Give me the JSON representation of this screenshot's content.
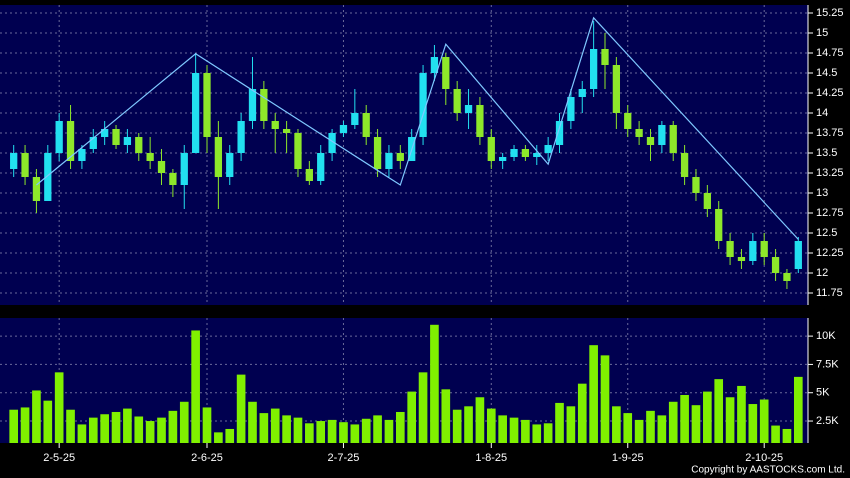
{
  "chart_data": [
    {
      "type": "candlestick",
      "open": [
        13.3,
        13.5,
        13.2,
        12.9,
        13.5,
        13.9,
        13.4,
        13.55,
        13.7,
        13.8,
        13.6,
        13.7,
        13.5,
        13.4,
        13.25,
        13.1,
        13.5,
        14.5,
        13.7,
        13.2,
        13.5,
        13.9,
        14.3,
        13.9,
        13.8,
        13.75,
        13.3,
        13.15,
        13.5,
        13.75,
        13.85,
        14.0,
        13.7,
        13.3,
        13.5,
        13.4,
        13.7,
        14.5,
        14.7,
        14.3,
        14.0,
        14.1,
        13.7,
        13.4,
        13.45,
        13.55,
        13.45,
        13.5,
        13.6,
        13.9,
        14.2,
        14.3,
        14.8,
        14.6,
        14.0,
        13.8,
        13.7,
        13.6,
        13.85,
        13.5,
        13.2,
        13.0,
        12.8,
        12.4,
        12.2,
        12.15,
        12.4,
        12.2,
        12.0,
        12.05
      ],
      "high": [
        13.6,
        13.6,
        13.3,
        13.6,
        14.0,
        14.1,
        13.6,
        13.8,
        13.9,
        13.85,
        13.8,
        13.75,
        13.7,
        13.55,
        13.3,
        13.6,
        14.75,
        14.6,
        13.9,
        13.6,
        14.0,
        14.7,
        14.4,
        14.0,
        13.9,
        13.8,
        13.4,
        13.6,
        13.8,
        13.9,
        14.3,
        14.1,
        13.8,
        13.6,
        13.6,
        13.8,
        14.6,
        14.85,
        14.75,
        14.4,
        14.3,
        14.2,
        13.8,
        13.5,
        13.6,
        13.6,
        13.6,
        13.7,
        14.0,
        14.3,
        14.4,
        15.15,
        15.0,
        14.7,
        14.1,
        13.9,
        13.8,
        13.9,
        13.9,
        13.6,
        13.3,
        13.1,
        12.9,
        12.5,
        12.3,
        12.5,
        12.5,
        12.3,
        12.05,
        12.45
      ],
      "low": [
        13.2,
        13.1,
        12.75,
        12.9,
        13.4,
        13.3,
        13.3,
        13.5,
        13.6,
        13.55,
        13.5,
        13.4,
        13.3,
        13.1,
        12.95,
        12.8,
        13.5,
        13.5,
        12.8,
        13.1,
        13.4,
        13.8,
        13.8,
        13.5,
        13.5,
        13.2,
        13.1,
        13.1,
        13.4,
        13.7,
        13.8,
        13.6,
        13.2,
        13.2,
        13.3,
        13.4,
        13.6,
        14.4,
        14.1,
        13.9,
        13.8,
        13.6,
        13.3,
        13.3,
        13.4,
        13.4,
        13.35,
        13.4,
        13.5,
        13.8,
        14.0,
        14.2,
        14.3,
        13.8,
        13.7,
        13.6,
        13.4,
        13.5,
        13.4,
        13.1,
        12.9,
        12.7,
        12.3,
        12.1,
        12.05,
        12.1,
        12.1,
        11.9,
        11.8,
        12.0
      ],
      "close": [
        13.5,
        13.2,
        12.9,
        13.5,
        13.9,
        13.4,
        13.55,
        13.7,
        13.8,
        13.6,
        13.7,
        13.5,
        13.4,
        13.25,
        13.1,
        13.5,
        14.5,
        13.7,
        13.2,
        13.5,
        13.9,
        14.3,
        13.9,
        13.8,
        13.75,
        13.3,
        13.15,
        13.5,
        13.75,
        13.85,
        14.0,
        13.7,
        13.3,
        13.5,
        13.4,
        13.7,
        14.5,
        14.7,
        14.3,
        14.0,
        14.1,
        13.7,
        13.4,
        13.45,
        13.55,
        13.45,
        13.5,
        13.6,
        13.9,
        14.2,
        14.3,
        14.8,
        14.6,
        14.0,
        13.8,
        13.7,
        13.6,
        13.85,
        13.5,
        13.2,
        13.0,
        12.8,
        12.4,
        12.2,
        12.15,
        12.4,
        12.2,
        12.0,
        11.9,
        12.4
      ],
      "up_color": "#22e0f0",
      "down_color": "#8ee82a",
      "zigzag": {
        "x": [
          2,
          16,
          34,
          38,
          47,
          51,
          69
        ],
        "values": [
          13.1,
          14.74,
          13.1,
          14.86,
          13.36,
          15.19,
          12.42
        ],
        "color": "#7fc8ff"
      },
      "ylim": [
        11.6,
        15.35
      ],
      "yticks": [
        11.75,
        12,
        12.25,
        12.5,
        12.75,
        13,
        13.25,
        13.5,
        13.75,
        14,
        14.25,
        14.5,
        14.75,
        15,
        15.25
      ],
      "grid": true
    },
    {
      "type": "bar",
      "categories": [
        null,
        null,
        null,
        null,
        "2-5-25",
        null,
        null,
        null,
        null,
        null,
        null,
        null,
        null,
        null,
        null,
        null,
        null,
        "2-6-25",
        null,
        null,
        null,
        null,
        null,
        null,
        null,
        null,
        null,
        null,
        null,
        "2-7-25",
        null,
        null,
        null,
        null,
        null,
        null,
        null,
        null,
        null,
        null,
        null,
        null,
        "1-8-25",
        null,
        null,
        null,
        null,
        null,
        null,
        null,
        null,
        null,
        null,
        null,
        "1-9-25",
        null,
        null,
        null,
        null,
        null,
        null,
        null,
        null,
        null,
        null,
        null,
        "2-10-25",
        null,
        null,
        null
      ],
      "values": [
        3500,
        3700,
        5200,
        4300,
        6800,
        3500,
        2200,
        2800,
        3100,
        3300,
        3600,
        2900,
        2500,
        2800,
        3400,
        4200,
        10500,
        3700,
        1500,
        1800,
        6600,
        4200,
        3200,
        3600,
        3000,
        2800,
        2300,
        2500,
        2600,
        2400,
        2200,
        2700,
        3000,
        2600,
        3300,
        5100,
        6800,
        11000,
        5300,
        3500,
        3800,
        4600,
        3600,
        3000,
        2800,
        2600,
        2200,
        2300,
        4100,
        3800,
        5800,
        9200,
        8300,
        3800,
        3200,
        2600,
        3400,
        3000,
        4200,
        4800,
        3900,
        5100,
        6200,
        4600,
        5600,
        4000,
        4400,
        2100,
        1800,
        6400
      ],
      "color": "#80f000",
      "ylim": [
        560,
        11600
      ],
      "yticks": [
        {
          "value": 2500,
          "label": "2.5K"
        },
        {
          "value": 5000,
          "label": "5K"
        },
        {
          "value": 7500,
          "label": "7.5K"
        },
        {
          "value": 10000,
          "label": "10K"
        }
      ],
      "grid": true
    }
  ],
  "footer": "Copyright by AASTOCKS.com Ltd."
}
